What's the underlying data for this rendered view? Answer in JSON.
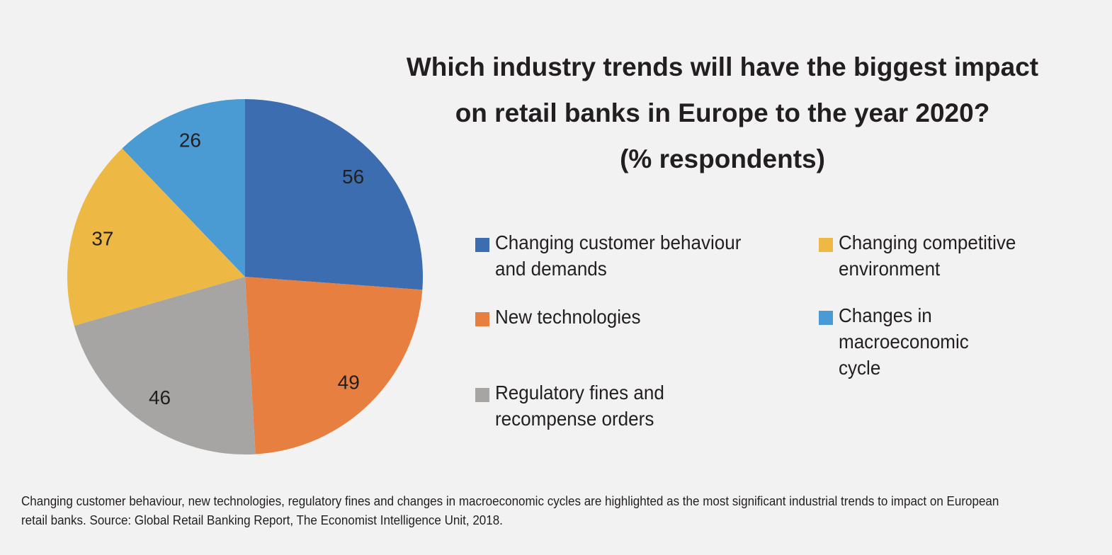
{
  "chart_data": {
    "type": "pie",
    "title": "Which industry trends will have the biggest impact on retail banks in Europe to the year 2020? (% respondents)",
    "title_lines": [
      "Which industry trends will have the biggest impact",
      "on retail banks in Europe to the year 2020?",
      "(% respondents)"
    ],
    "categories": [
      "Changing customer behaviour and demands",
      "New technologies",
      "Regulatory fines and recompense orders",
      "Changing competitive environment",
      "Changes in macroeconomic cycle"
    ],
    "legend_lines": [
      "Changing customer behaviour\nand demands",
      "New technologies",
      "Regulatory fines and\nrecompense orders",
      "Changing competitive\nenvironment",
      "Changes in\nmacroeconomic\ncycle"
    ],
    "values": [
      56,
      49,
      46,
      37,
      26
    ],
    "colors": [
      "#3b6db0",
      "#e67f3f",
      "#a6a5a4",
      "#edb944",
      "#4a9ad3"
    ],
    "legend_placement": "right",
    "start": "top, clockwise"
  },
  "caption": "Changing customer behaviour, new technologies, regulatory fines and changes in macroeconomic cycles are highlighted as the most significant industrial trends to impact on European retail banks.  Source: Global Retail Banking Report, The Economist Intelligence Unit, 2018.",
  "background": "#f2f2f2"
}
